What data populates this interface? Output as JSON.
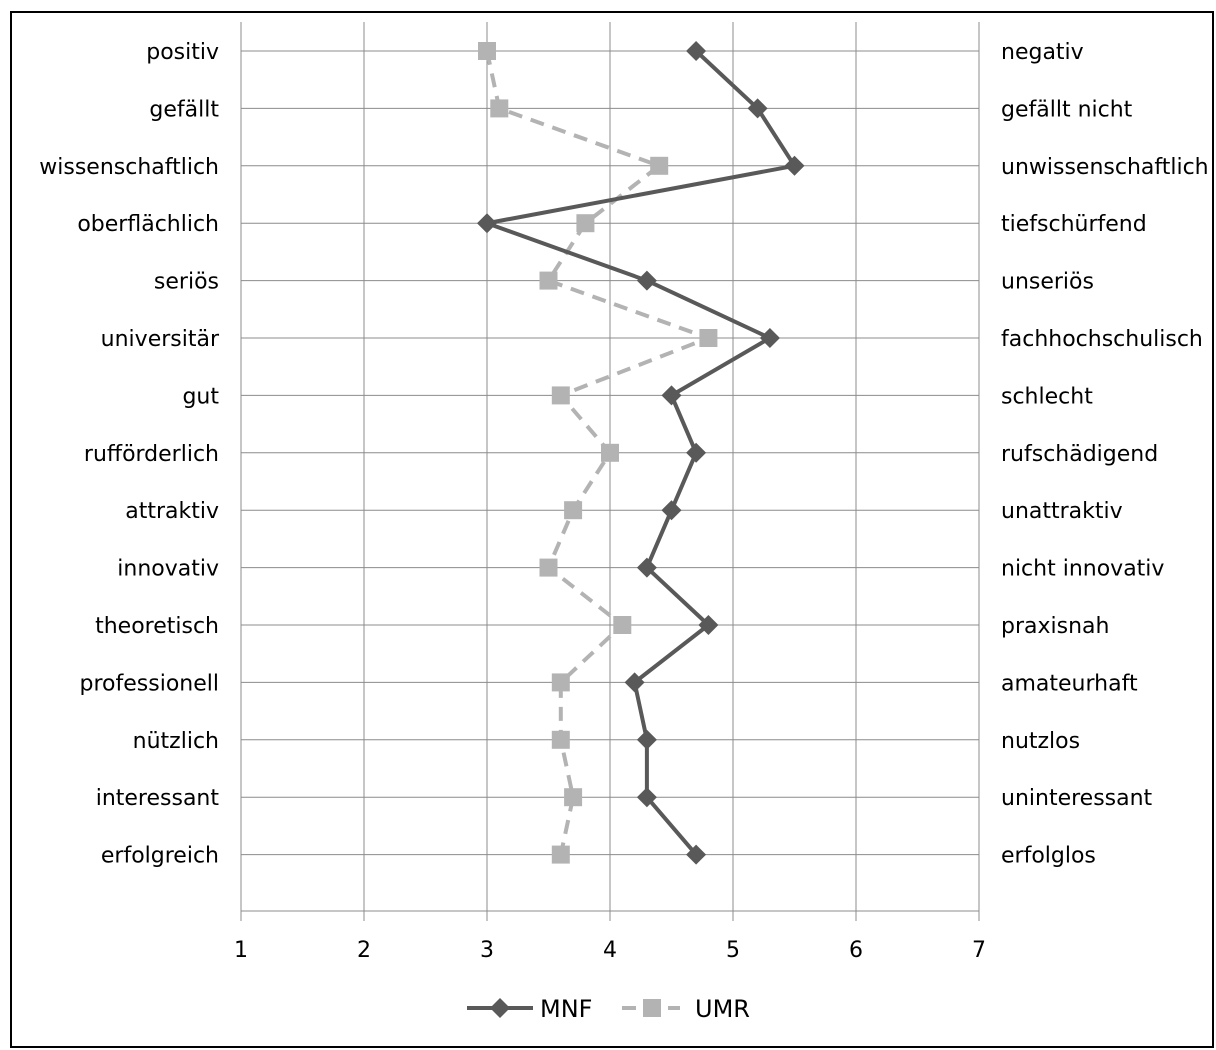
{
  "chart_data": {
    "type": "line",
    "orientation": "horizontal-profile",
    "title": "",
    "xlabel": "",
    "ylabel": "",
    "xlim": [
      1,
      7
    ],
    "x_ticks": [
      "1",
      "2",
      "3",
      "4",
      "5",
      "6",
      "7"
    ],
    "grid": true,
    "legend_position": "bottom",
    "left_labels": [
      "positiv",
      "gefällt",
      "wissenschaftlich",
      "oberflächlich",
      "seriös",
      "universitär",
      "gut",
      "rufförderlich",
      "attraktiv",
      "innovativ",
      "theoretisch",
      "professionell",
      "nützlich",
      "interessant",
      "erfolgreich"
    ],
    "right_labels": [
      "negativ",
      "gefällt nicht",
      "unwissenschaftlich",
      "tiefschürfend",
      "unseriös",
      "fachhochschulisch",
      "schlecht",
      "rufschädigend",
      "unattraktiv",
      "nicht innovativ",
      "praxisnah",
      "amateurhaft",
      "nutzlos",
      "uninteressant",
      "erfolglos"
    ],
    "series": [
      {
        "name": "MNF",
        "style": "solid",
        "marker": "diamond",
        "color": "#595959",
        "values": [
          4.7,
          5.2,
          5.5,
          3.0,
          4.3,
          5.3,
          4.5,
          4.7,
          4.5,
          4.3,
          4.8,
          4.2,
          4.3,
          4.3,
          4.7
        ]
      },
      {
        "name": "UMR",
        "style": "dashed",
        "marker": "square",
        "color": "#b3b3b3",
        "values": [
          3.0,
          3.1,
          4.4,
          3.8,
          3.5,
          4.8,
          3.6,
          4.0,
          3.7,
          3.5,
          4.1,
          3.6,
          3.6,
          3.7,
          3.6
        ]
      }
    ]
  }
}
